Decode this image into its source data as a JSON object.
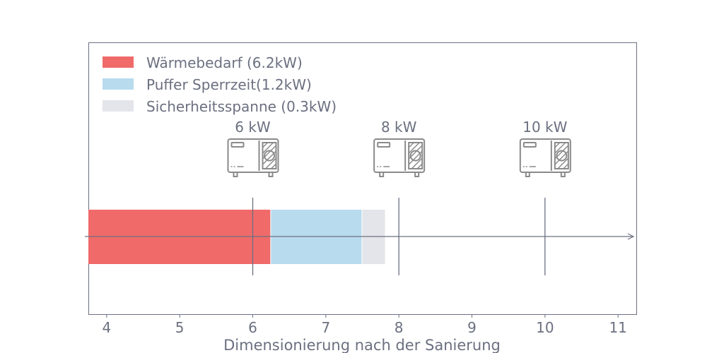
{
  "chart_data": {
    "type": "bar",
    "orientation": "horizontal-stacked",
    "xlabel": "Dimensionierung nach der Sanierung",
    "xlim": [
      3.75,
      11.25
    ],
    "xticks": [
      4,
      5,
      6,
      7,
      8,
      9,
      10,
      11
    ],
    "grid": false,
    "legend_placement": "top-left",
    "series": [
      {
        "name": "Wärmebedarf (6.2kW)",
        "start": 3.75,
        "end": 6.25,
        "color": "#f06a6a"
      },
      {
        "name": "Puffer Sperrzeit(1.2kW)",
        "start": 6.25,
        "end": 7.5,
        "color": "#b8dbee"
      },
      {
        "name": "Sicherheitsspanne (0.3kW)",
        "start": 7.5,
        "end": 7.81,
        "color": "#e4e5ea"
      }
    ],
    "markers": [
      {
        "value": 6,
        "label": "6 kW",
        "icon": "heat-pump-icon"
      },
      {
        "value": 8,
        "label": "8 kW",
        "icon": "heat-pump-icon"
      },
      {
        "value": 10,
        "label": "10 kW",
        "icon": "heat-pump-icon"
      }
    ],
    "axis_color": "#6b7080"
  }
}
